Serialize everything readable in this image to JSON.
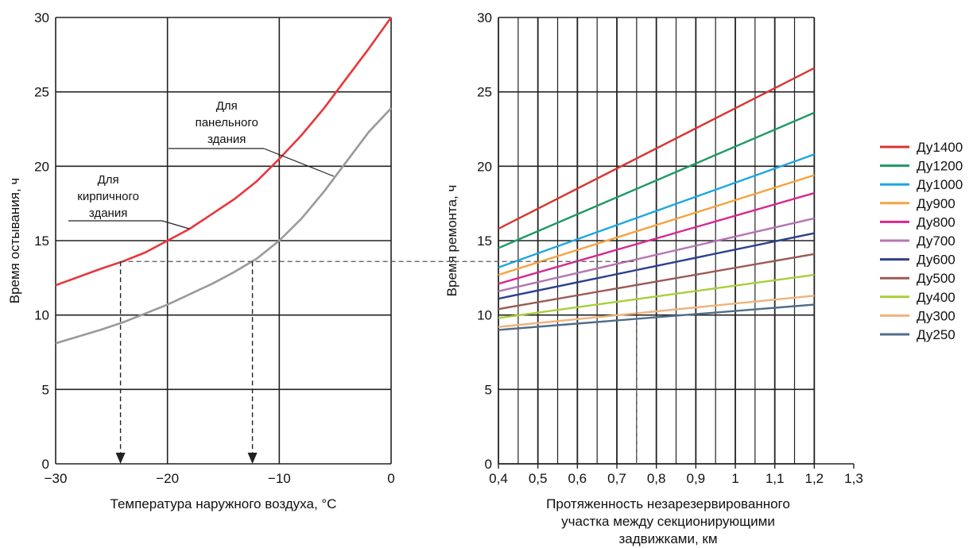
{
  "chart_data": [
    {
      "type": "line",
      "title": "",
      "xlabel": "Температура наружного воздуха, °С",
      "ylabel": "Время остывания, ч",
      "xlim": [
        -30,
        0
      ],
      "ylim": [
        0,
        30
      ],
      "x_ticks": [
        -30,
        -20,
        -10,
        0
      ],
      "x_tick_labels": [
        "−30",
        "−20",
        "−10",
        "0"
      ],
      "y_ticks": [
        0,
        5,
        10,
        15,
        20,
        25,
        30
      ],
      "y_tick_labels": [
        "0",
        "5",
        "10",
        "15",
        "20",
        "25",
        "30"
      ],
      "grid": true,
      "series": [
        {
          "name": "Для кирпичного здания",
          "color": "#e8363a",
          "x": [
            -30,
            -26,
            -24,
            -22,
            -20,
            -18,
            -16,
            -14,
            -12,
            -10,
            -8,
            -6,
            -4,
            -2,
            0
          ],
          "y": [
            12.0,
            13.1,
            13.6,
            14.2,
            15.0,
            15.8,
            16.8,
            17.8,
            19.0,
            20.5,
            22.1,
            23.9,
            25.9,
            27.9,
            30.0
          ]
        },
        {
          "name": "Для панельного здания",
          "color": "#9a9a9a",
          "x": [
            -30,
            -26,
            -24,
            -22,
            -20,
            -18,
            -16,
            -14,
            -12,
            -10,
            -8,
            -6,
            -4,
            -2,
            0
          ],
          "y": [
            8.1,
            9.0,
            9.5,
            10.1,
            10.7,
            11.4,
            12.1,
            12.9,
            13.8,
            15.0,
            16.5,
            18.3,
            20.3,
            22.3,
            23.9
          ]
        }
      ],
      "annotations": [
        {
          "text": [
            "Для",
            "кирпичного",
            "здания"
          ],
          "series": "Для кирпичного здания"
        },
        {
          "text": [
            "Для",
            "панельного",
            "здания"
          ],
          "series": "Для панельного здания"
        }
      ],
      "guides": {
        "y_level": 13.6,
        "x_values": [
          -24.2,
          -12.4
        ],
        "arrows_to_axis": true
      }
    },
    {
      "type": "line",
      "title": "",
      "xlabel": [
        "Протяженность незарезервированного",
        "участка между секционирующими",
        "задвижками, км"
      ],
      "ylabel": "Время ремонта, ч",
      "xlim": [
        0.4,
        1.3
      ],
      "ylim": [
        0,
        30
      ],
      "x_ticks": [
        0.4,
        0.5,
        0.6,
        0.7,
        0.8,
        0.9,
        1.0,
        1.1,
        1.2,
        1.3
      ],
      "x_tick_labels": [
        "0,4",
        "0,5",
        "0,6",
        "0,7",
        "0,8",
        "0,9",
        "1",
        "1,1",
        "1,2",
        "1,3"
      ],
      "y_ticks": [
        0,
        5,
        10,
        15,
        20,
        25,
        30
      ],
      "y_tick_labels": [
        "0",
        "5",
        "10",
        "15",
        "20",
        "25",
        "30"
      ],
      "grid": true,
      "legend": "right",
      "series": [
        {
          "name": "Ду1400",
          "color": "#d8342f",
          "x": [
            0.4,
            1.2
          ],
          "y": [
            15.8,
            26.6
          ]
        },
        {
          "name": "Ду1200",
          "color": "#1f9a63",
          "x": [
            0.4,
            1.2
          ],
          "y": [
            14.5,
            23.6
          ]
        },
        {
          "name": "Ду1000",
          "color": "#1aa7e0",
          "x": [
            0.4,
            1.2
          ],
          "y": [
            13.2,
            20.8
          ]
        },
        {
          "name": "Ду900",
          "color": "#f5a341",
          "x": [
            0.4,
            1.2
          ],
          "y": [
            12.7,
            19.4
          ]
        },
        {
          "name": "Ду800",
          "color": "#d8278f",
          "x": [
            0.4,
            1.2
          ],
          "y": [
            12.1,
            18.2
          ]
        },
        {
          "name": "Ду700",
          "color": "#b574b4",
          "x": [
            0.4,
            1.2
          ],
          "y": [
            11.6,
            16.5
          ]
        },
        {
          "name": "Ду600",
          "color": "#2d3f8f",
          "x": [
            0.4,
            1.2
          ],
          "y": [
            11.1,
            15.5
          ]
        },
        {
          "name": "Ду500",
          "color": "#9b5a55",
          "x": [
            0.4,
            1.2
          ],
          "y": [
            10.4,
            14.1
          ]
        },
        {
          "name": "Ду400",
          "color": "#a6cf3a",
          "x": [
            0.4,
            1.2
          ],
          "y": [
            9.8,
            12.7
          ]
        },
        {
          "name": "Ду300",
          "color": "#f0b27a",
          "x": [
            0.4,
            1.2
          ],
          "y": [
            9.2,
            11.3
          ]
        },
        {
          "name": "Ду250",
          "color": "#4f6d8a",
          "x": [
            0.4,
            1.2
          ],
          "y": [
            9.0,
            10.7
          ]
        }
      ],
      "guides": {
        "y_level": 13.6,
        "x_value": 0.75
      }
    }
  ]
}
